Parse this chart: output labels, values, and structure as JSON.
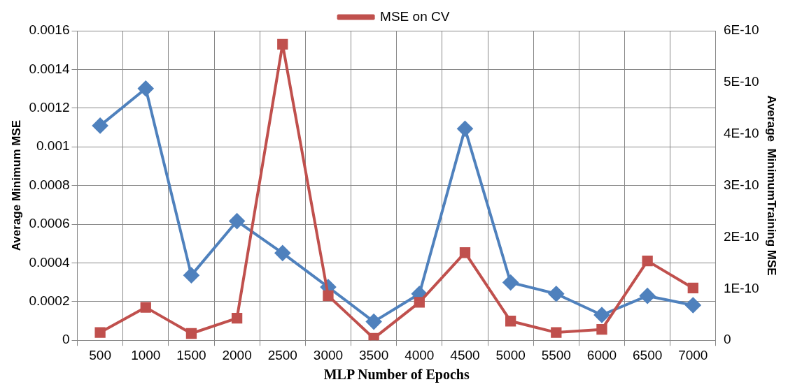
{
  "chart_data": {
    "type": "line",
    "xlabel": "MLP Number of Epochs",
    "ylabel": "Average Minimum MSE",
    "y2label": "Average  MinimumTraining MSE",
    "categories": [
      "500",
      "1000",
      "1500",
      "2000",
      "2500",
      "3000",
      "3500",
      "4000",
      "4500",
      "5000",
      "5500",
      "6000",
      "6500",
      "7000"
    ],
    "series": [
      {
        "name": "MSE on CV",
        "color": "#c0504d",
        "marker": "square",
        "values": [
          4e-05,
          0.00017,
          3.5e-05,
          0.000114,
          0.00153,
          0.00023,
          1e-05,
          0.000196,
          0.000453,
          9.9e-05,
          4e-05,
          5.6e-05,
          0.00041,
          0.00027
        ]
      },
      {
        "color": "#4f81bd",
        "marker": "diamond",
        "axis": "y2",
        "values": [
          4.16e-10,
          4.88e-10,
          1.26e-10,
          2.31e-10,
          1.69e-10,
          1.03e-10,
          3.6e-11,
          9e-11,
          4.1e-10,
          1.12e-10,
          9e-11,
          4.9e-11,
          8.6e-11,
          6.8e-11
        ]
      }
    ],
    "ylim": [
      0,
      0.0016
    ],
    "yticks": [
      0,
      0.0002,
      0.0004,
      0.0006,
      0.0008,
      0.001,
      0.0012,
      0.0014,
      0.0016
    ],
    "y2lim": [
      0,
      6e-10
    ],
    "y2ticks": [
      0,
      {
        "value": 1e-10,
        "label": "1E-10"
      },
      {
        "value": 2e-10,
        "label": "2E-10"
      },
      {
        "value": 3e-10,
        "label": "3E-10"
      },
      {
        "value": 4e-10,
        "label": "4E-10"
      },
      {
        "value": 5e-10,
        "label": "5E-10"
      },
      {
        "value": 6e-10,
        "label": "6E-10"
      }
    ],
    "grid": true,
    "legend": "top",
    "line_style": "solid"
  }
}
